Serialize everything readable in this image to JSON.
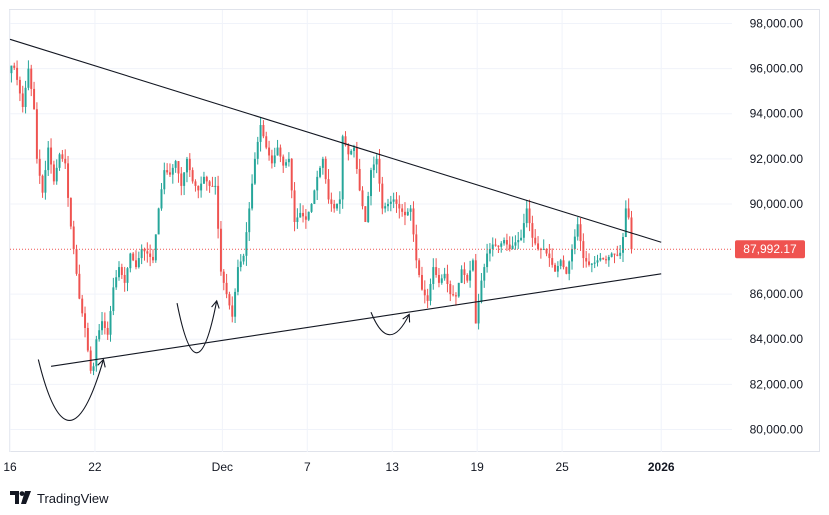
{
  "branding": {
    "name": "TradingView",
    "icon": "tradingview-logo-icon"
  },
  "last_price": {
    "value": 87992.17,
    "label": "87,992.17"
  },
  "colors": {
    "up": "#26a69a",
    "down": "#ef5350",
    "grid": "#f0f3fa",
    "price_line": "#ef5350",
    "trendline": "#131722"
  },
  "chart_data": {
    "type": "candlestick",
    "title": "",
    "xlabel": "",
    "ylabel": "",
    "ylim": [
      79000,
      98600
    ],
    "y_ticks": [
      {
        "value": 98000,
        "label": "98,000.00"
      },
      {
        "value": 96000,
        "label": "96,000.00"
      },
      {
        "value": 94000,
        "label": "94,000.00"
      },
      {
        "value": 92000,
        "label": "92,000.00"
      },
      {
        "value": 90000,
        "label": "90,000.00"
      },
      {
        "value": 86000,
        "label": "86,000.00"
      },
      {
        "value": 84000,
        "label": "84,000.00"
      },
      {
        "value": 82000,
        "label": "82,000.00"
      },
      {
        "value": 80000,
        "label": "80,000.00"
      }
    ],
    "x_ticks": [
      {
        "day": 0,
        "label": "16",
        "bold": false
      },
      {
        "day": 6,
        "label": "22",
        "bold": false
      },
      {
        "day": 15,
        "label": "Dec",
        "bold": false
      },
      {
        "day": 21,
        "label": "7",
        "bold": false
      },
      {
        "day": 27,
        "label": "13",
        "bold": false
      },
      {
        "day": 33,
        "label": "19",
        "bold": false
      },
      {
        "day": 39,
        "label": "25",
        "bold": false
      },
      {
        "day": 46,
        "label": "2026",
        "bold": true
      }
    ],
    "x_range": [
      0,
      51
    ],
    "grid": true,
    "path_points": [
      [
        0.0,
        95800
      ],
      [
        0.3,
        96300
      ],
      [
        0.6,
        95500
      ],
      [
        1.0,
        94300
      ],
      [
        1.4,
        96000
      ],
      [
        1.8,
        94200
      ],
      [
        2.0,
        92000
      ],
      [
        2.4,
        90500
      ],
      [
        2.8,
        92500
      ],
      [
        3.2,
        91000
      ],
      [
        3.6,
        92200
      ],
      [
        4.0,
        91800
      ],
      [
        4.3,
        89500
      ],
      [
        4.6,
        88000
      ],
      [
        5.0,
        85800
      ],
      [
        5.4,
        84500
      ],
      [
        5.7,
        83000
      ],
      [
        5.9,
        82200
      ],
      [
        6.2,
        84000
      ],
      [
        6.6,
        84800
      ],
      [
        7.0,
        84200
      ],
      [
        7.4,
        86300
      ],
      [
        7.8,
        87200
      ],
      [
        8.2,
        86500
      ],
      [
        8.6,
        87800
      ],
      [
        9.0,
        87200
      ],
      [
        9.4,
        88000
      ],
      [
        9.8,
        87800
      ],
      [
        10.2,
        87500
      ],
      [
        10.6,
        89800
      ],
      [
        11.0,
        91500
      ],
      [
        11.4,
        91300
      ],
      [
        11.8,
        91900
      ],
      [
        12.2,
        90800
      ],
      [
        12.6,
        92000
      ],
      [
        13.0,
        91000
      ],
      [
        13.4,
        90600
      ],
      [
        13.8,
        91200
      ],
      [
        14.2,
        90800
      ],
      [
        14.6,
        90800
      ],
      [
        15.0,
        87000
      ],
      [
        15.4,
        86000
      ],
      [
        15.8,
        85000
      ],
      [
        16.2,
        87200
      ],
      [
        16.6,
        87700
      ],
      [
        17.0,
        89800
      ],
      [
        17.4,
        92000
      ],
      [
        17.8,
        93500
      ],
      [
        18.2,
        92500
      ],
      [
        18.6,
        91800
      ],
      [
        19.0,
        92500
      ],
      [
        19.4,
        91700
      ],
      [
        19.8,
        92000
      ],
      [
        20.2,
        89200
      ],
      [
        20.6,
        89600
      ],
      [
        21.0,
        89300
      ],
      [
        21.4,
        90000
      ],
      [
        21.8,
        91200
      ],
      [
        22.2,
        92000
      ],
      [
        22.6,
        90200
      ],
      [
        23.0,
        89800
      ],
      [
        23.4,
        90200
      ],
      [
        23.6,
        93000
      ],
      [
        24.0,
        92200
      ],
      [
        24.4,
        92500
      ],
      [
        24.8,
        90600
      ],
      [
        25.2,
        89200
      ],
      [
        25.6,
        91500
      ],
      [
        26.0,
        92000
      ],
      [
        26.4,
        89800
      ],
      [
        26.8,
        90000
      ],
      [
        27.2,
        90200
      ],
      [
        27.6,
        89800
      ],
      [
        28.0,
        89500
      ],
      [
        28.4,
        89800
      ],
      [
        28.8,
        87500
      ],
      [
        29.2,
        86200
      ],
      [
        29.6,
        85700
      ],
      [
        30.0,
        87200
      ],
      [
        30.4,
        86500
      ],
      [
        30.8,
        86900
      ],
      [
        31.2,
        86000
      ],
      [
        31.6,
        85900
      ],
      [
        32.0,
        87100
      ],
      [
        32.4,
        86600
      ],
      [
        32.8,
        87500
      ],
      [
        33.0,
        84700
      ],
      [
        33.4,
        86600
      ],
      [
        33.8,
        87800
      ],
      [
        34.2,
        88200
      ],
      [
        34.6,
        88100
      ],
      [
        35.0,
        88400
      ],
      [
        35.4,
        88000
      ],
      [
        35.8,
        88300
      ],
      [
        36.2,
        88500
      ],
      [
        36.6,
        89800
      ],
      [
        37.0,
        88500
      ],
      [
        37.4,
        88000
      ],
      [
        37.8,
        88000
      ],
      [
        38.2,
        87600
      ],
      [
        38.6,
        87000
      ],
      [
        39.0,
        87500
      ],
      [
        39.4,
        86900
      ],
      [
        39.8,
        88000
      ],
      [
        40.2,
        89100
      ],
      [
        40.6,
        87600
      ],
      [
        41.0,
        87300
      ],
      [
        41.4,
        87400
      ],
      [
        41.8,
        87600
      ],
      [
        42.2,
        87500
      ],
      [
        42.6,
        87800
      ],
      [
        43.0,
        87700
      ],
      [
        43.3,
        87900
      ],
      [
        43.6,
        89800
      ],
      [
        43.8,
        89400
      ],
      [
        44.0,
        87992.17
      ]
    ],
    "bar_step": 0.2,
    "trendlines": [
      {
        "name": "descending-resistance",
        "p1": [
          0.0,
          97300
        ],
        "p2": [
          46.0,
          88300
        ]
      },
      {
        "name": "ascending-support",
        "p1": [
          2.9,
          82800
        ],
        "p2": [
          46.0,
          86900
        ]
      }
    ],
    "arcs": [
      {
        "name": "bottom-arc-1",
        "start": [
          2.0,
          83100
        ],
        "bottom": [
          4.2,
          80400
        ],
        "end": [
          6.6,
          83100
        ]
      },
      {
        "name": "bottom-arc-2",
        "start": [
          11.8,
          85600
        ],
        "bottom": [
          13.2,
          83400
        ],
        "end": [
          14.6,
          85700
        ]
      },
      {
        "name": "bottom-arc-3",
        "start": [
          25.5,
          85200
        ],
        "bottom": [
          26.8,
          84200
        ],
        "end": [
          28.2,
          85100
        ]
      }
    ]
  }
}
